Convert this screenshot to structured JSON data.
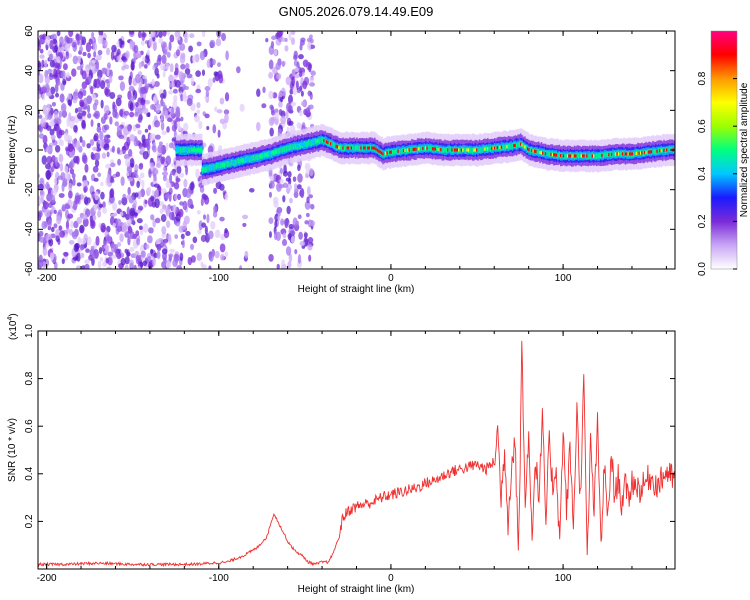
{
  "title": "GN05.2026.079.14.49.E09",
  "chart_data": [
    {
      "type": "heatmap",
      "xlabel": "Height of straight line (km)",
      "ylabel": "Frequency (Hz)",
      "xlim": [
        -205,
        165
      ],
      "ylim": [
        -60,
        60
      ],
      "xticks": [
        -200,
        -100,
        0,
        100
      ],
      "yticks": [
        -60,
        -40,
        -20,
        0,
        20,
        40,
        60
      ],
      "xtick_labels": [
        "-200",
        "-100",
        "0",
        "100"
      ],
      "ytick_labels": [
        "-60",
        "-40",
        "-20",
        "0",
        "20",
        "40",
        "60"
      ],
      "colorbar": {
        "label": "Normalized spectral amplitude",
        "range": [
          0,
          1
        ],
        "ticks": [
          0.0,
          0.2,
          0.4,
          0.6,
          0.8
        ],
        "tick_labels": [
          "0.0",
          "0.2",
          "0.4",
          "0.6",
          "0.8"
        ],
        "colors": [
          "#ffffff",
          "#c9a6f5",
          "#7a2bd9",
          "#1a1aff",
          "#00c8ff",
          "#00ff80",
          "#9cff00",
          "#ffff00",
          "#ff9900",
          "#ff0000",
          "#ff0080"
        ]
      },
      "ridge": {
        "x": [
          -110,
          -100,
          -90,
          -80,
          -70,
          -60,
          -50,
          -45,
          -40,
          -35,
          -30,
          -20,
          -10,
          -5,
          0,
          10,
          20,
          30,
          40,
          50,
          60,
          70,
          75,
          80,
          90,
          100,
          110,
          120,
          130,
          140,
          150,
          160,
          165
        ],
        "y": [
          -10,
          -8,
          -6,
          -4,
          -2,
          1,
          3,
          4,
          5,
          3,
          1,
          1,
          1,
          -2,
          -1,
          0,
          1,
          0,
          0,
          0,
          1,
          2,
          3,
          0,
          -2,
          -3,
          -3,
          -3,
          -2,
          -2,
          -1,
          0,
          0
        ]
      }
    },
    {
      "type": "line",
      "xlabel": "Height of straight line (km)",
      "ylabel": "SNR (10 * v/v)",
      "y_multiplier_label": "(x10",
      "y_multiplier_exp": "4",
      "y_multiplier_close": ")",
      "xlim": [
        -205,
        165
      ],
      "ylim": [
        0,
        1.0
      ],
      "xticks": [
        -200,
        -100,
        0,
        100
      ],
      "yticks": [
        0.2,
        0.4,
        0.6,
        0.8,
        1.0
      ],
      "xtick_labels": [
        "-200",
        "-100",
        "0",
        "100"
      ],
      "ytick_labels": [
        "0.2",
        "0.4",
        "0.6",
        "0.8",
        "1.0"
      ],
      "color": "#f03030",
      "series": [
        {
          "name": "SNR",
          "x": [
            -205,
            -190,
            -170,
            -150,
            -130,
            -115,
            -105,
            -95,
            -85,
            -78,
            -72,
            -68,
            -64,
            -60,
            -56,
            -52,
            -48,
            -44,
            -40,
            -36,
            -33,
            -30,
            -28,
            -25,
            -20,
            -15,
            -10,
            -5,
            0,
            5,
            10,
            15,
            20,
            25,
            30,
            35,
            40,
            45,
            50,
            55,
            60,
            62,
            64,
            66,
            68,
            70,
            72,
            74,
            75,
            76,
            78,
            80,
            82,
            84,
            86,
            88,
            90,
            92,
            94,
            96,
            98,
            100,
            102,
            104,
            106,
            108,
            110,
            112,
            114,
            116,
            118,
            120,
            122,
            124,
            126,
            128,
            130,
            132,
            134,
            136,
            138,
            140,
            145,
            150,
            155,
            160,
            165
          ],
          "y": [
            0.02,
            0.02,
            0.025,
            0.02,
            0.02,
            0.02,
            0.025,
            0.03,
            0.06,
            0.09,
            0.14,
            0.24,
            0.18,
            0.12,
            0.08,
            0.06,
            0.03,
            0.02,
            0.03,
            0.03,
            0.08,
            0.14,
            0.22,
            0.25,
            0.27,
            0.28,
            0.29,
            0.31,
            0.32,
            0.33,
            0.34,
            0.35,
            0.37,
            0.38,
            0.4,
            0.42,
            0.43,
            0.44,
            0.45,
            0.43,
            0.46,
            0.6,
            0.3,
            0.52,
            0.2,
            0.45,
            0.55,
            0.1,
            0.4,
            1.0,
            0.25,
            0.6,
            0.15,
            0.48,
            0.3,
            0.65,
            0.2,
            0.55,
            0.35,
            0.45,
            0.1,
            0.6,
            0.25,
            0.52,
            0.18,
            0.7,
            0.3,
            0.82,
            0.05,
            0.55,
            0.25,
            0.62,
            0.1,
            0.45,
            0.2,
            0.5,
            0.3,
            0.4,
            0.28,
            0.36,
            0.3,
            0.38,
            0.34,
            0.4,
            0.36,
            0.42,
            0.38
          ]
        }
      ]
    }
  ]
}
